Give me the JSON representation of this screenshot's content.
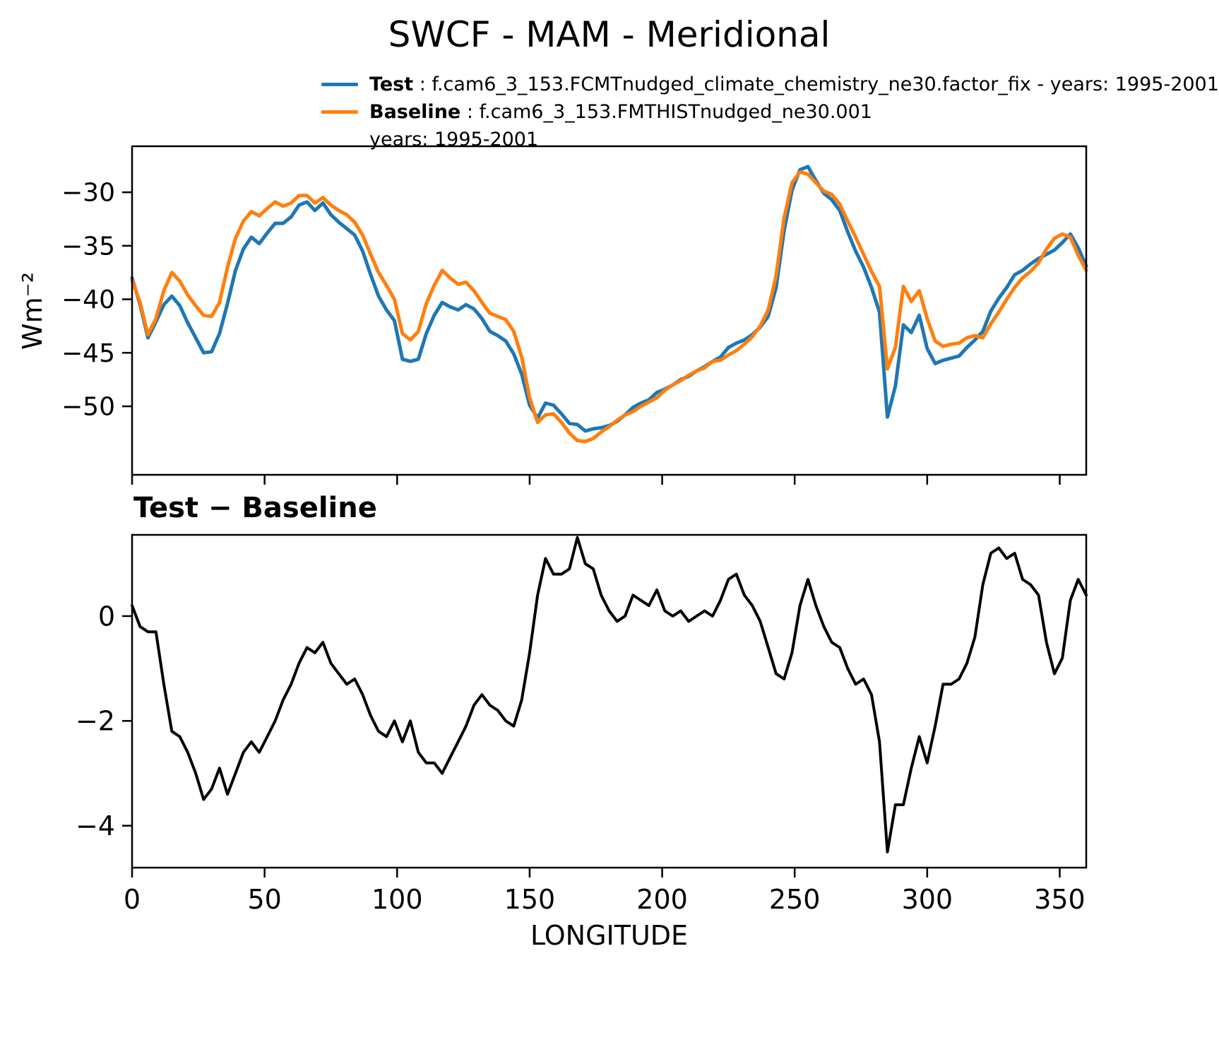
{
  "figure": {
    "title": "SWCF - MAM - Meridional",
    "ylabel_top": "Wm⁻²",
    "subtitle_bottom": "Test − Baseline",
    "xlabel": "LONGITUDE",
    "legend": {
      "test": {
        "label": "Test",
        "text": " : f.cam6_3_153.FCMTnudged_climate_chemistry_ne30.factor_fix - years: 1995-2001",
        "color": "#1f77b4"
      },
      "baseline": {
        "label": "Baseline",
        "text": " : f.cam6_3_153.FMTHISTnudged_ne30.001",
        "text2": "years: 1995-2001",
        "color": "#ff7f0e"
      }
    }
  },
  "chart_data": [
    {
      "type": "line",
      "title": "SWCF - MAM - Meridional",
      "ylabel": "Wm⁻²",
      "xlabel": "",
      "xlim": [
        0,
        360
      ],
      "ylim": [
        -56.4,
        -25.7
      ],
      "yticks": [
        -30,
        -35,
        -40,
        -45,
        -50
      ],
      "ytick_labels": [
        "−30",
        "−35",
        "−40",
        "−45",
        "−50"
      ],
      "xticks": [
        0,
        50,
        100,
        150,
        200,
        250,
        300,
        350
      ],
      "xtick_labels": [],
      "grid": false,
      "legend_position": "above top-left",
      "x": [
        0,
        3,
        6,
        9,
        12,
        15,
        18,
        21,
        24,
        27,
        30,
        33,
        36,
        39,
        42,
        45,
        48,
        51,
        54,
        57,
        60,
        63,
        66,
        69,
        72,
        75,
        78,
        81,
        84,
        87,
        90,
        93,
        96,
        99,
        102,
        105,
        108,
        111,
        114,
        117,
        120,
        123,
        126,
        129,
        132,
        135,
        138,
        141,
        144,
        147,
        150,
        153,
        156,
        159,
        162,
        165,
        168,
        171,
        174,
        177,
        180,
        183,
        186,
        189,
        192,
        195,
        198,
        201,
        204,
        207,
        210,
        213,
        216,
        219,
        222,
        225,
        228,
        231,
        234,
        237,
        240,
        243,
        246,
        249,
        252,
        255,
        258,
        261,
        264,
        267,
        270,
        273,
        276,
        279,
        282,
        285,
        288,
        291,
        294,
        297,
        300,
        303,
        306,
        309,
        312,
        315,
        318,
        321,
        324,
        327,
        330,
        333,
        336,
        339,
        342,
        345,
        348,
        351,
        354,
        357,
        360
      ],
      "series": [
        {
          "name": "Test",
          "color": "#1f77b4",
          "values": [
            -38.0,
            -40.5,
            -43.6,
            -42.1,
            -40.5,
            -39.7,
            -40.6,
            -42.2,
            -43.6,
            -45.0,
            -44.9,
            -43.2,
            -40.4,
            -37.3,
            -35.3,
            -34.2,
            -34.8,
            -33.8,
            -32.9,
            -32.9,
            -32.3,
            -31.2,
            -30.9,
            -31.7,
            -31.0,
            -32.1,
            -32.8,
            -33.4,
            -34.0,
            -35.5,
            -37.7,
            -39.7,
            -41.0,
            -42.0,
            -45.6,
            -45.8,
            -45.6,
            -43.2,
            -41.5,
            -40.3,
            -40.7,
            -41.0,
            -40.5,
            -40.9,
            -41.8,
            -43.0,
            -43.4,
            -43.9,
            -45.1,
            -47.0,
            -49.9,
            -51.1,
            -49.7,
            -49.9,
            -50.7,
            -51.6,
            -51.7,
            -52.3,
            -52.1,
            -52.0,
            -51.8,
            -51.4,
            -50.8,
            -50.1,
            -49.7,
            -49.4,
            -48.7,
            -48.4,
            -48.0,
            -47.5,
            -47.2,
            -46.7,
            -46.3,
            -45.8,
            -45.4,
            -44.5,
            -44.1,
            -43.8,
            -43.3,
            -42.6,
            -41.6,
            -38.9,
            -33.6,
            -29.8,
            -27.9,
            -27.6,
            -28.9,
            -30.1,
            -30.7,
            -31.7,
            -33.7,
            -35.5,
            -37.0,
            -38.9,
            -41.2,
            -51.0,
            -48.1,
            -42.4,
            -43.1,
            -41.5,
            -44.6,
            -46.0,
            -45.7,
            -45.5,
            -45.3,
            -44.5,
            -43.8,
            -43.0,
            -41.1,
            -39.9,
            -38.9,
            -37.7,
            -37.3,
            -36.7,
            -36.2,
            -35.8,
            -35.4,
            -34.7,
            -33.9,
            -35.2,
            -36.9
          ]
        },
        {
          "name": "Baseline",
          "color": "#ff7f0e",
          "values": [
            -38.2,
            -40.3,
            -43.3,
            -41.8,
            -39.2,
            -37.5,
            -38.3,
            -39.6,
            -40.6,
            -41.5,
            -41.6,
            -40.3,
            -37.0,
            -34.3,
            -32.7,
            -31.8,
            -32.2,
            -31.5,
            -30.9,
            -31.3,
            -31.0,
            -30.3,
            -30.3,
            -31.0,
            -30.5,
            -31.2,
            -31.7,
            -32.1,
            -32.8,
            -34.0,
            -35.8,
            -37.5,
            -38.7,
            -40.0,
            -43.2,
            -43.8,
            -43.0,
            -40.4,
            -38.7,
            -37.3,
            -38.0,
            -38.6,
            -38.4,
            -39.2,
            -40.3,
            -41.3,
            -41.6,
            -41.9,
            -43.0,
            -45.4,
            -49.2,
            -51.5,
            -50.8,
            -50.7,
            -51.5,
            -52.5,
            -53.2,
            -53.3,
            -53.0,
            -52.4,
            -51.9,
            -51.3,
            -50.8,
            -50.5,
            -50.0,
            -49.6,
            -49.2,
            -48.5,
            -48.0,
            -47.6,
            -47.1,
            -46.7,
            -46.4,
            -45.8,
            -45.7,
            -45.2,
            -44.8,
            -44.2,
            -43.5,
            -42.5,
            -41.0,
            -37.8,
            -32.4,
            -29.1,
            -28.1,
            -28.3,
            -29.1,
            -29.9,
            -30.2,
            -31.1,
            -32.7,
            -34.2,
            -35.8,
            -37.4,
            -38.8,
            -46.5,
            -44.5,
            -38.8,
            -40.2,
            -39.2,
            -41.8,
            -43.9,
            -44.4,
            -44.2,
            -44.1,
            -43.6,
            -43.4,
            -43.6,
            -42.3,
            -41.2,
            -40.0,
            -38.9,
            -38.0,
            -37.4,
            -36.6,
            -35.3,
            -34.3,
            -33.9,
            -34.2,
            -35.9,
            -37.3
          ]
        }
      ]
    },
    {
      "type": "line",
      "title": "Test − Baseline",
      "ylabel": "",
      "xlabel": "LONGITUDE",
      "xlim": [
        0,
        360
      ],
      "ylim": [
        -4.8,
        1.55
      ],
      "yticks": [
        0,
        -2,
        -4
      ],
      "ytick_labels": [
        "0",
        "−2",
        "−4"
      ],
      "xticks": [
        0,
        50,
        100,
        150,
        200,
        250,
        300,
        350
      ],
      "xtick_labels": [
        "0",
        "50",
        "100",
        "150",
        "200",
        "250",
        "300",
        "350"
      ],
      "grid": false,
      "x": [
        0,
        3,
        6,
        9,
        12,
        15,
        18,
        21,
        24,
        27,
        30,
        33,
        36,
        39,
        42,
        45,
        48,
        51,
        54,
        57,
        60,
        63,
        66,
        69,
        72,
        75,
        78,
        81,
        84,
        87,
        90,
        93,
        96,
        99,
        102,
        105,
        108,
        111,
        114,
        117,
        120,
        123,
        126,
        129,
        132,
        135,
        138,
        141,
        144,
        147,
        150,
        153,
        156,
        159,
        162,
        165,
        168,
        171,
        174,
        177,
        180,
        183,
        186,
        189,
        192,
        195,
        198,
        201,
        204,
        207,
        210,
        213,
        216,
        219,
        222,
        225,
        228,
        231,
        234,
        237,
        240,
        243,
        246,
        249,
        252,
        255,
        258,
        261,
        264,
        267,
        270,
        273,
        276,
        279,
        282,
        285,
        288,
        291,
        294,
        297,
        300,
        303,
        306,
        309,
        312,
        315,
        318,
        321,
        324,
        327,
        330,
        333,
        336,
        339,
        342,
        345,
        348,
        351,
        354,
        357,
        360
      ],
      "series": [
        {
          "name": "Test − Baseline",
          "color": "#000000",
          "values": [
            0.2,
            -0.2,
            -0.3,
            -0.3,
            -1.3,
            -2.2,
            -2.3,
            -2.6,
            -3.0,
            -3.5,
            -3.3,
            -2.9,
            -3.4,
            -3.0,
            -2.6,
            -2.4,
            -2.6,
            -2.3,
            -2.0,
            -1.6,
            -1.3,
            -0.9,
            -0.6,
            -0.7,
            -0.5,
            -0.9,
            -1.1,
            -1.3,
            -1.2,
            -1.5,
            -1.9,
            -2.2,
            -2.3,
            -2.0,
            -2.4,
            -2.0,
            -2.6,
            -2.8,
            -2.8,
            -3.0,
            -2.7,
            -2.4,
            -2.1,
            -1.7,
            -1.5,
            -1.7,
            -1.8,
            -2.0,
            -2.1,
            -1.6,
            -0.7,
            0.4,
            1.1,
            0.8,
            0.8,
            0.9,
            1.5,
            1.0,
            0.9,
            0.4,
            0.1,
            -0.1,
            0.0,
            0.4,
            0.3,
            0.2,
            0.5,
            0.1,
            0.0,
            0.1,
            -0.1,
            0.0,
            0.1,
            0.0,
            0.3,
            0.7,
            0.8,
            0.4,
            0.2,
            -0.1,
            -0.6,
            -1.1,
            -1.2,
            -0.7,
            0.2,
            0.7,
            0.2,
            -0.2,
            -0.5,
            -0.6,
            -1.0,
            -1.3,
            -1.2,
            -1.5,
            -2.4,
            -4.5,
            -3.6,
            -3.6,
            -2.9,
            -2.3,
            -2.8,
            -2.1,
            -1.3,
            -1.3,
            -1.2,
            -0.9,
            -0.4,
            0.6,
            1.2,
            1.3,
            1.1,
            1.2,
            0.7,
            0.6,
            0.4,
            -0.5,
            -1.1,
            -0.8,
            0.3,
            0.7,
            0.4
          ]
        }
      ]
    }
  ]
}
